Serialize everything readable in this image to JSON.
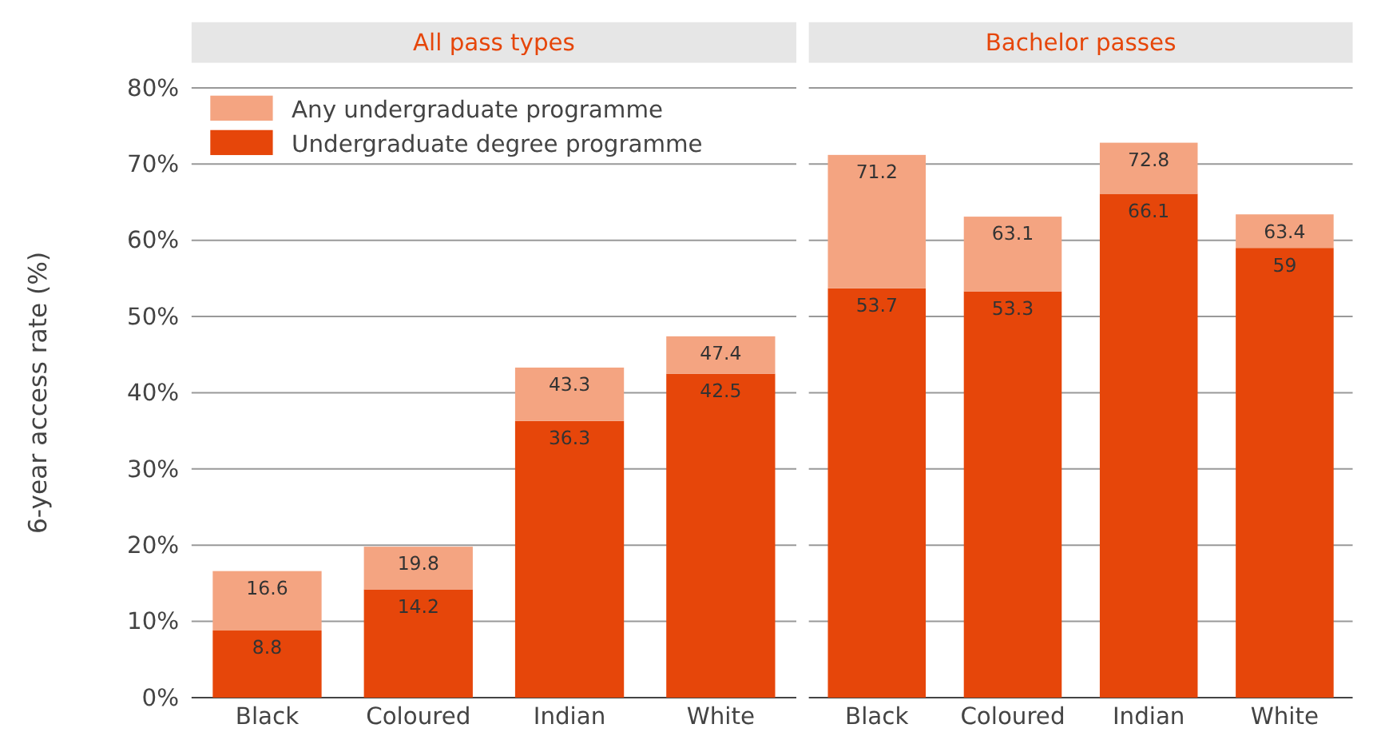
{
  "chart_data": [
    {
      "type": "bar",
      "title": "All pass types",
      "ylabel": "6-year access rate (%)",
      "categories": [
        "Black",
        "Coloured",
        "Indian",
        "White"
      ],
      "stacked": true,
      "legend": "top left",
      "grid": "y",
      "ylim": [
        0,
        80
      ],
      "yticks": [
        {
          "value": 0,
          "label": "0%"
        },
        {
          "value": 10,
          "label": "10%"
        },
        {
          "value": 20,
          "label": "20%"
        },
        {
          "value": 30,
          "label": "30%"
        },
        {
          "value": 40,
          "label": "40%"
        },
        {
          "value": 50,
          "label": "50%"
        },
        {
          "value": 60,
          "label": "60%"
        },
        {
          "value": 70,
          "label": "70%"
        },
        {
          "value": 80,
          "label": "80%"
        }
      ],
      "totals": [
        "16.6",
        "19.8",
        "43.3",
        "47.4"
      ],
      "series": [
        {
          "name": "Undergraduate degree programme",
          "color": "#e6460a",
          "values": [
            8.8,
            14.2,
            36.3,
            42.5
          ],
          "value_labels": [
            "8.8",
            "14.2",
            "36.3",
            "42.5"
          ]
        },
        {
          "name": "Any undergraduate programme",
          "color": "#f4a481",
          "values": [
            7.8,
            5.6,
            7.0,
            4.9
          ]
        }
      ]
    },
    {
      "type": "bar",
      "title": "Bachelor passes",
      "categories": [
        "Black",
        "Coloured",
        "Indian",
        "White"
      ],
      "stacked": true,
      "grid": "y",
      "tick_labels": "x",
      "ylim": [
        0,
        80
      ],
      "yticks": [
        {
          "value": 0,
          "label": null
        },
        {
          "value": 10,
          "label": null
        },
        {
          "value": 20,
          "label": null
        },
        {
          "value": 30,
          "label": null
        },
        {
          "value": 40,
          "label": null
        },
        {
          "value": 50,
          "label": null
        },
        {
          "value": 60,
          "label": null
        },
        {
          "value": 70,
          "label": null
        },
        {
          "value": 80,
          "label": null
        }
      ],
      "totals": [
        "71.2",
        "63.1",
        "72.8",
        "63.4"
      ],
      "series": [
        {
          "color": "#e6460a",
          "values": [
            53.7,
            53.3,
            66.1,
            59
          ],
          "value_labels": [
            "53.7",
            "53.3",
            "66.1",
            "59"
          ]
        },
        {
          "color": "#f4a481",
          "values": [
            17.5,
            9.8,
            6.7,
            4.4
          ]
        }
      ]
    }
  ]
}
